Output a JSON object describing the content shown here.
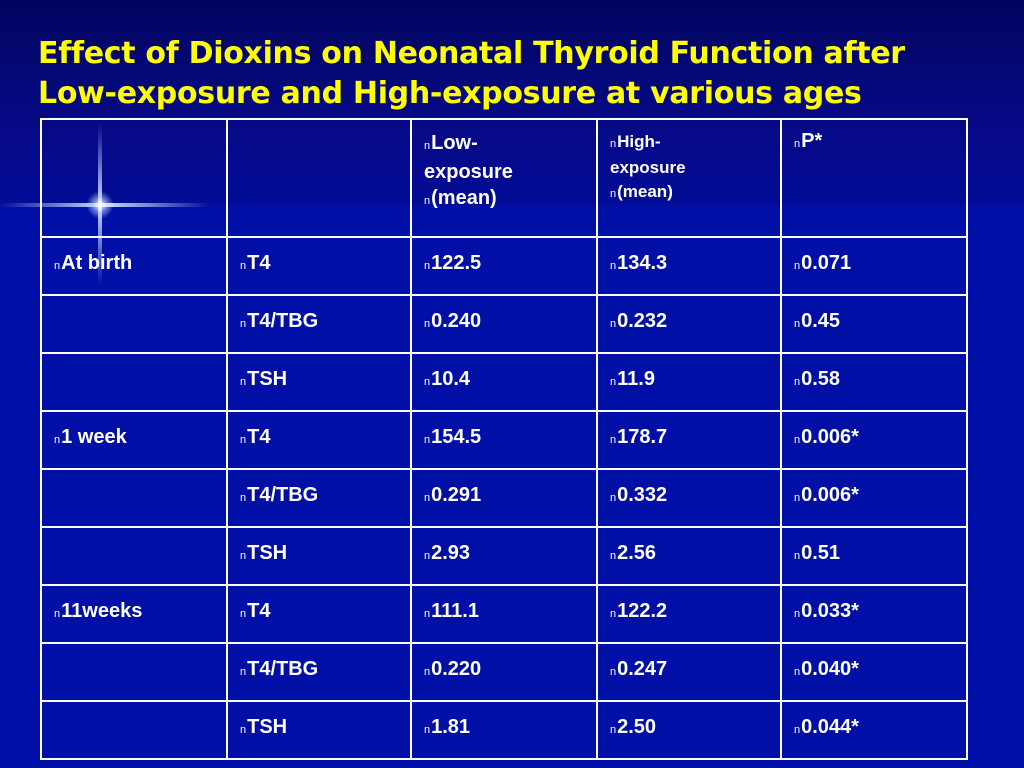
{
  "title": {
    "line1": "Effect of Dioxins on Neonatal Thyroid Function after",
    "line2": "Low-exposure and High-exposure at various ages"
  },
  "bullet": "n",
  "colors": {
    "background": "#000fa6",
    "title": "#ffff00",
    "text": "#ffffff",
    "highlight": "#c8ff00"
  },
  "table": {
    "headers": {
      "low": {
        "line1": "Low-",
        "line2": "exposure",
        "line3": "(mean)"
      },
      "high": {
        "line1": "High-",
        "line2": "exposure",
        "line3": "(mean)"
      },
      "p": "P*"
    },
    "rows": [
      {
        "age": "At birth",
        "param": "T4",
        "low": "122.5",
        "high": "134.3",
        "p": "0.071",
        "highlight": false
      },
      {
        "age": "",
        "param": "T4/TBG",
        "low": "0.240",
        "high": "0.232",
        "p": "0.45",
        "highlight": false
      },
      {
        "age": "",
        "param": "TSH",
        "low": "10.4",
        "high": "11.9",
        "p": "0.58",
        "highlight": false
      },
      {
        "age": "1 week",
        "param": "T4",
        "low": "154.5",
        "high": "178.7",
        "p": "0.006*",
        "highlight": true
      },
      {
        "age": "",
        "param": "T4/TBG",
        "low": "0.291",
        "high": "0.332",
        "p": "0.006*",
        "highlight": true
      },
      {
        "age": "",
        "param": "TSH",
        "low": "2.93",
        "high": "2.56",
        "p": "0.51",
        "highlight": false
      },
      {
        "age": "11weeks",
        "param": "T4",
        "low": "111.1",
        "high": "122.2",
        "p": "0.033*",
        "highlight": true
      },
      {
        "age": "",
        "param": "T4/TBG",
        "low": "0.220",
        "high": "0.247",
        "p": "0.040*",
        "highlight": true
      },
      {
        "age": "",
        "param": "TSH",
        "low": "1.81",
        "high": "2.50",
        "p": "0.044*",
        "highlight": true
      }
    ]
  }
}
